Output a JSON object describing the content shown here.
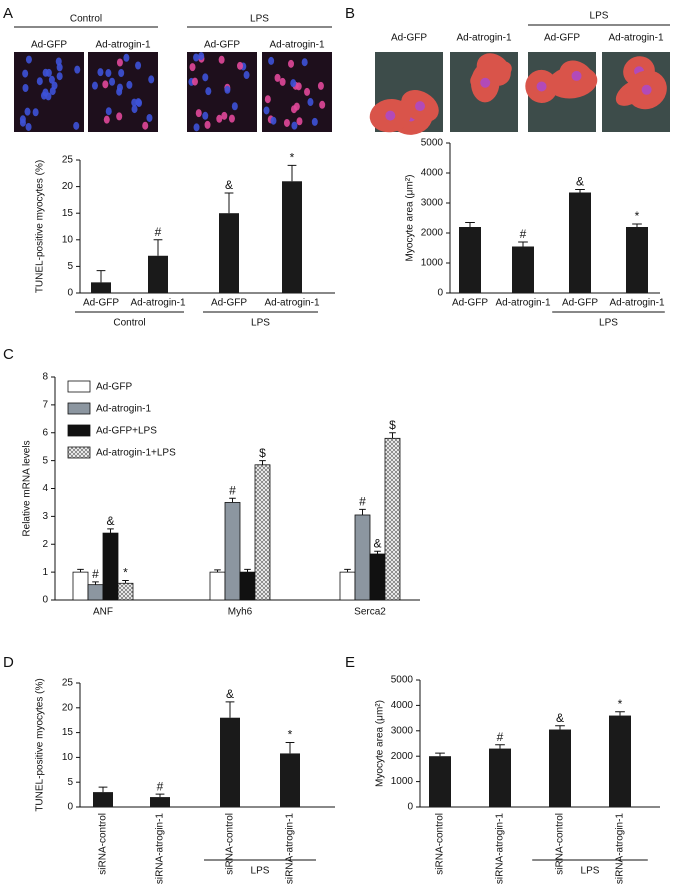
{
  "chart_data": [
    {
      "letter": "A",
      "type": "bar",
      "images": {
        "labels": [
          "Ad-GFP",
          "Ad-atrogin-1",
          "Ad-GFP",
          "Ad-atrogin-1"
        ],
        "groups": [
          {
            "name": "Control",
            "from": 0,
            "to": 1
          },
          {
            "name": "LPS",
            "from": 2,
            "to": 3
          }
        ]
      },
      "ylabel": "TUNEL-positive myocytes (%)",
      "ylim": [
        0,
        25
      ],
      "yticks": [
        0,
        5,
        10,
        15,
        20,
        25
      ],
      "categories": [
        "Ad-GFP",
        "Ad-atrogin-1",
        "Ad-GFP",
        "Ad-atrogin-1"
      ],
      "values": [
        2,
        7,
        15,
        21
      ],
      "errors": [
        2.2,
        3,
        3.8,
        3
      ],
      "annotations": [
        null,
        "#",
        "&",
        "*"
      ],
      "color": "#1a1a1a",
      "groups": [
        {
          "name": "Control",
          "from": 0,
          "to": 1
        },
        {
          "name": "LPS",
          "from": 2,
          "to": 3
        }
      ]
    },
    {
      "letter": "B",
      "type": "bar",
      "images": {
        "labels": [
          "Ad-GFP",
          "Ad-atrogin-1",
          "Ad-GFP",
          "Ad-atrogin-1"
        ],
        "groups": [
          {
            "name": "LPS",
            "from": 2,
            "to": 3
          }
        ]
      },
      "ylabel": "Myocyte area (μm²)",
      "ylim": [
        0,
        5000
      ],
      "yticks": [
        0,
        1000,
        2000,
        3000,
        4000,
        5000
      ],
      "categories": [
        "Ad-GFP",
        "Ad-atrogin-1",
        "Ad-GFP",
        "Ad-atrogin-1"
      ],
      "values": [
        2200,
        1550,
        3350,
        2200
      ],
      "errors": [
        150,
        150,
        100,
        100
      ],
      "annotations": [
        null,
        "#",
        "&",
        "*"
      ],
      "color": "#1a1a1a",
      "groups": [
        {
          "name": "LPS",
          "from": 2,
          "to": 3
        }
      ]
    },
    {
      "letter": "C",
      "type": "grouped_bar",
      "ylabel": "Relative mRNA levels",
      "ylim": [
        0,
        8
      ],
      "yticks": [
        0,
        1,
        2,
        3,
        4,
        5,
        6,
        7,
        8
      ],
      "categories": [
        "ANF",
        "Myh6",
        "Serca2"
      ],
      "series": [
        {
          "name": "Ad-GFP",
          "color": "#ffffff",
          "values": [
            1.0,
            1.0,
            1.0
          ],
          "errors": [
            0.1,
            0.08,
            0.1
          ],
          "annotations": [
            null,
            null,
            null
          ]
        },
        {
          "name": "Ad-atrogin-1",
          "color": "#8c96a0",
          "values": [
            0.55,
            3.5,
            3.05
          ],
          "errors": [
            0.1,
            0.15,
            0.2
          ],
          "annotations": [
            "#",
            "#",
            "#"
          ]
        },
        {
          "name": "Ad-GFP+LPS",
          "color": "#111111",
          "values": [
            2.4,
            1.0,
            1.65
          ],
          "errors": [
            0.15,
            0.1,
            0.1
          ],
          "annotations": [
            "&",
            null,
            "&"
          ]
        },
        {
          "name": "Ad-atrogin-1+LPS",
          "color": "#ffffff",
          "hatch": true,
          "values": [
            0.6,
            4.85,
            5.8
          ],
          "errors": [
            0.1,
            0.15,
            0.2
          ],
          "annotations": [
            "*",
            "$",
            "$"
          ]
        }
      ]
    },
    {
      "letter": "D",
      "type": "bar",
      "ylabel": "TUNEL-positive myocytes (%)",
      "ylim": [
        0,
        25
      ],
      "yticks": [
        0,
        5,
        10,
        15,
        20,
        25
      ],
      "categories": [
        "siRNA-control",
        "siRNA-atrogin-1",
        "siRNA-control",
        "siRNA-atrogin-1"
      ],
      "values": [
        3,
        2,
        18,
        10.8
      ],
      "errors": [
        1,
        0.6,
        3.2,
        2.2
      ],
      "annotations": [
        null,
        "#",
        "&",
        "*"
      ],
      "color": "#1a1a1a",
      "groups": [
        {
          "name": "LPS",
          "from": 2,
          "to": 3
        }
      ]
    },
    {
      "letter": "E",
      "type": "bar",
      "ylabel": "Myocyte area (μm²)",
      "ylim": [
        0,
        5000
      ],
      "yticks": [
        0,
        1000,
        2000,
        3000,
        4000,
        5000
      ],
      "categories": [
        "siRNA-control",
        "siRNA-atrogin-1",
        "siRNA-control",
        "siRNA-atrogin-1"
      ],
      "values": [
        2000,
        2300,
        3050,
        3600
      ],
      "errors": [
        120,
        150,
        150,
        150
      ],
      "annotations": [
        null,
        "#",
        "&",
        "*"
      ],
      "color": "#1a1a1a",
      "groups": [
        {
          "name": "LPS",
          "from": 2,
          "to": 3
        }
      ]
    }
  ]
}
